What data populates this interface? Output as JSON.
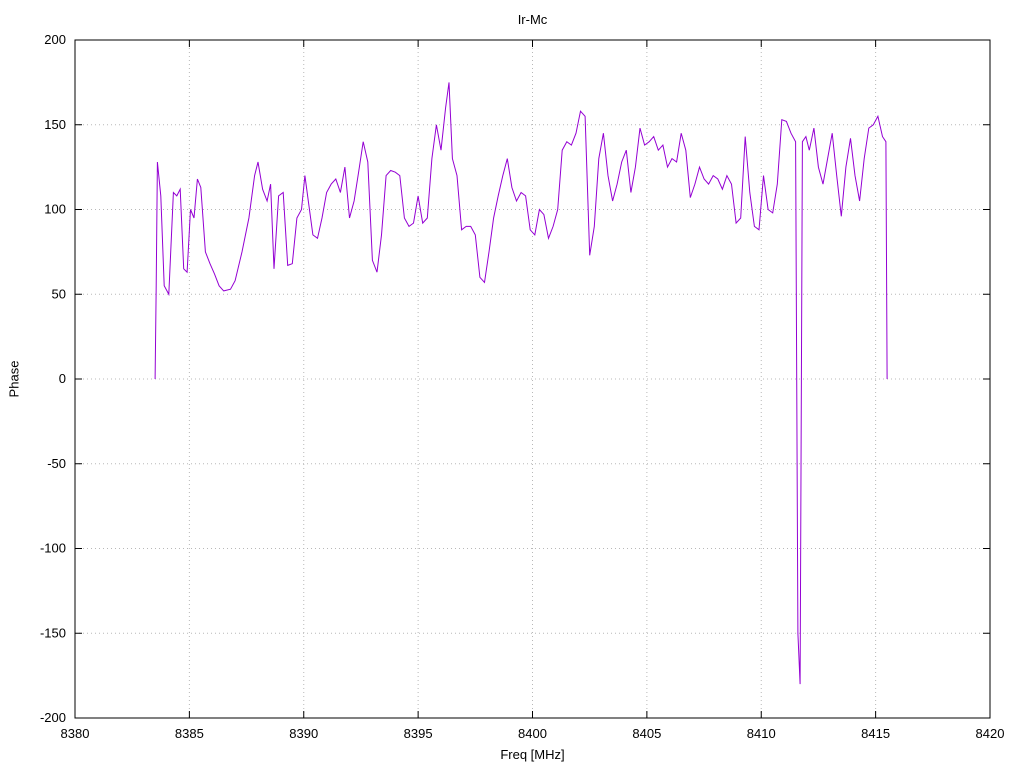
{
  "chart_data": {
    "type": "line",
    "title": "Ir-Mc",
    "xlabel": "Freq [MHz]",
    "ylabel": "Phase",
    "xlim": [
      8380,
      8420
    ],
    "ylim": [
      -200,
      200
    ],
    "xticks": [
      8380,
      8385,
      8390,
      8395,
      8400,
      8405,
      8410,
      8415,
      8420
    ],
    "yticks": [
      -200,
      -150,
      -100,
      -50,
      0,
      50,
      100,
      150,
      200
    ],
    "grid": true,
    "legend": "none",
    "line_color": "#9400d3",
    "grid_color": "#b8b8b8",
    "border_color": "#000000",
    "series": [
      {
        "name": "phase",
        "points": [
          [
            8383.5,
            0
          ],
          [
            8383.55,
            55
          ],
          [
            8383.6,
            128
          ],
          [
            8383.75,
            108
          ],
          [
            8383.9,
            55
          ],
          [
            8384.1,
            50
          ],
          [
            8384.3,
            110
          ],
          [
            8384.45,
            108
          ],
          [
            8384.6,
            112
          ],
          [
            8384.75,
            65
          ],
          [
            8384.9,
            63
          ],
          [
            8385.05,
            100
          ],
          [
            8385.2,
            95
          ],
          [
            8385.35,
            118
          ],
          [
            8385.5,
            113
          ],
          [
            8385.7,
            75
          ],
          [
            8385.9,
            68
          ],
          [
            8386.1,
            62
          ],
          [
            8386.3,
            55
          ],
          [
            8386.5,
            52
          ],
          [
            8386.8,
            53
          ],
          [
            8387.0,
            58
          ],
          [
            8387.3,
            75
          ],
          [
            8387.6,
            95
          ],
          [
            8387.85,
            120
          ],
          [
            8388.0,
            128
          ],
          [
            8388.2,
            112
          ],
          [
            8388.4,
            105
          ],
          [
            8388.55,
            115
          ],
          [
            8388.7,
            65
          ],
          [
            8388.9,
            108
          ],
          [
            8389.1,
            110
          ],
          [
            8389.3,
            67
          ],
          [
            8389.5,
            68
          ],
          [
            8389.7,
            95
          ],
          [
            8389.9,
            100
          ],
          [
            8390.05,
            120
          ],
          [
            8390.2,
            105
          ],
          [
            8390.4,
            85
          ],
          [
            8390.6,
            83
          ],
          [
            8390.8,
            95
          ],
          [
            8391.0,
            110
          ],
          [
            8391.2,
            115
          ],
          [
            8391.4,
            118
          ],
          [
            8391.6,
            110
          ],
          [
            8391.8,
            125
          ],
          [
            8392.0,
            95
          ],
          [
            8392.2,
            105
          ],
          [
            8392.4,
            122
          ],
          [
            8392.6,
            140
          ],
          [
            8392.8,
            128
          ],
          [
            8393.0,
            70
          ],
          [
            8393.2,
            63
          ],
          [
            8393.4,
            85
          ],
          [
            8393.6,
            120
          ],
          [
            8393.8,
            123
          ],
          [
            8394.0,
            122
          ],
          [
            8394.2,
            120
          ],
          [
            8394.4,
            95
          ],
          [
            8394.6,
            90
          ],
          [
            8394.8,
            92
          ],
          [
            8395.0,
            108
          ],
          [
            8395.2,
            92
          ],
          [
            8395.4,
            95
          ],
          [
            8395.6,
            130
          ],
          [
            8395.8,
            150
          ],
          [
            8396.0,
            135
          ],
          [
            8396.2,
            160
          ],
          [
            8396.35,
            175
          ],
          [
            8396.5,
            130
          ],
          [
            8396.7,
            120
          ],
          [
            8396.9,
            88
          ],
          [
            8397.1,
            90
          ],
          [
            8397.3,
            90
          ],
          [
            8397.5,
            85
          ],
          [
            8397.7,
            60
          ],
          [
            8397.9,
            57
          ],
          [
            8398.1,
            75
          ],
          [
            8398.3,
            95
          ],
          [
            8398.5,
            108
          ],
          [
            8398.7,
            120
          ],
          [
            8398.9,
            130
          ],
          [
            8399.1,
            113
          ],
          [
            8399.3,
            105
          ],
          [
            8399.5,
            110
          ],
          [
            8399.7,
            108
          ],
          [
            8399.9,
            88
          ],
          [
            8400.1,
            85
          ],
          [
            8400.3,
            100
          ],
          [
            8400.5,
            97
          ],
          [
            8400.7,
            83
          ],
          [
            8400.9,
            90
          ],
          [
            8401.1,
            100
          ],
          [
            8401.3,
            135
          ],
          [
            8401.5,
            140
          ],
          [
            8401.7,
            138
          ],
          [
            8401.9,
            145
          ],
          [
            8402.1,
            158
          ],
          [
            8402.3,
            155
          ],
          [
            8402.5,
            73
          ],
          [
            8402.7,
            90
          ],
          [
            8402.9,
            130
          ],
          [
            8403.1,
            145
          ],
          [
            8403.3,
            120
          ],
          [
            8403.5,
            105
          ],
          [
            8403.7,
            115
          ],
          [
            8403.9,
            128
          ],
          [
            8404.1,
            135
          ],
          [
            8404.3,
            110
          ],
          [
            8404.5,
            125
          ],
          [
            8404.7,
            148
          ],
          [
            8404.9,
            138
          ],
          [
            8405.1,
            140
          ],
          [
            8405.3,
            143
          ],
          [
            8405.5,
            135
          ],
          [
            8405.7,
            138
          ],
          [
            8405.9,
            125
          ],
          [
            8406.1,
            130
          ],
          [
            8406.3,
            128
          ],
          [
            8406.5,
            145
          ],
          [
            8406.7,
            135
          ],
          [
            8406.9,
            107
          ],
          [
            8407.1,
            115
          ],
          [
            8407.3,
            125
          ],
          [
            8407.5,
            118
          ],
          [
            8407.7,
            115
          ],
          [
            8407.9,
            120
          ],
          [
            8408.1,
            118
          ],
          [
            8408.3,
            112
          ],
          [
            8408.5,
            120
          ],
          [
            8408.7,
            115
          ],
          [
            8408.9,
            92
          ],
          [
            8409.1,
            95
          ],
          [
            8409.3,
            143
          ],
          [
            8409.5,
            110
          ],
          [
            8409.7,
            90
          ],
          [
            8409.9,
            88
          ],
          [
            8410.1,
            120
          ],
          [
            8410.3,
            100
          ],
          [
            8410.5,
            98
          ],
          [
            8410.7,
            115
          ],
          [
            8410.9,
            153
          ],
          [
            8411.1,
            152
          ],
          [
            8411.3,
            145
          ],
          [
            8411.5,
            140
          ],
          [
            8411.6,
            -150
          ],
          [
            8411.7,
            -180
          ],
          [
            8411.8,
            140
          ],
          [
            8411.95,
            143
          ],
          [
            8412.1,
            135
          ],
          [
            8412.3,
            148
          ],
          [
            8412.5,
            125
          ],
          [
            8412.7,
            115
          ],
          [
            8412.9,
            130
          ],
          [
            8413.1,
            145
          ],
          [
            8413.3,
            120
          ],
          [
            8413.5,
            96
          ],
          [
            8413.7,
            125
          ],
          [
            8413.9,
            142
          ],
          [
            8414.1,
            120
          ],
          [
            8414.3,
            105
          ],
          [
            8414.5,
            130
          ],
          [
            8414.7,
            148
          ],
          [
            8414.9,
            150
          ],
          [
            8415.1,
            155
          ],
          [
            8415.3,
            143
          ],
          [
            8415.45,
            140
          ],
          [
            8415.5,
            0
          ]
        ]
      }
    ]
  }
}
